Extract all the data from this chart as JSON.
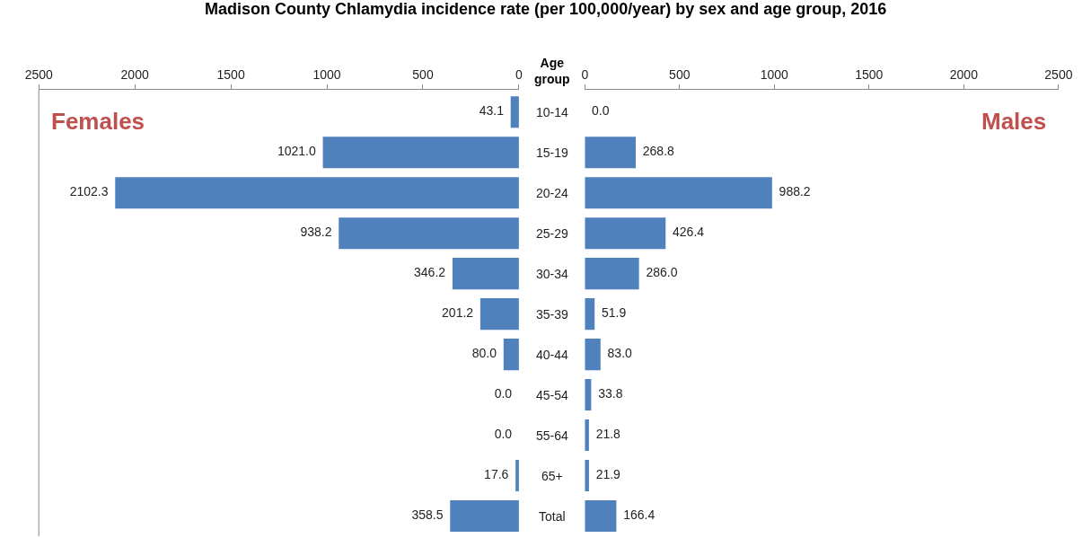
{
  "chart_data": [
    {
      "type": "bar",
      "orientation": "horizontal",
      "title": "Madison County Chlamydia incidence rate (per 100,000/year) by sex and age group, 2016",
      "categories": [
        "10-14",
        "15-19",
        "20-24",
        "25-29",
        "30-34",
        "35-39",
        "40-44",
        "45-54",
        "55-64",
        "65+",
        "Total"
      ],
      "series": [
        {
          "name": "Females",
          "color": "#4f81bd",
          "values": [
            43.1,
            1021.0,
            2102.3,
            938.2,
            346.2,
            201.2,
            80.0,
            0.0,
            0.0,
            17.6,
            358.5
          ],
          "value_labels": [
            "43.1",
            "1021.0",
            "2102.3",
            "938.2",
            "346.2",
            "201.2",
            "80.0",
            "0.0",
            "0.0",
            "17.6",
            "358.5"
          ]
        }
      ],
      "xlim": [
        2500,
        0
      ],
      "xticks": [
        2500,
        2000,
        1500,
        1000,
        500,
        0
      ],
      "tick_labels": "x",
      "grid": false,
      "legend": false
    },
    {
      "type": "bar",
      "orientation": "horizontal",
      "ylabel": "Age group",
      "categories": [
        "10-14",
        "15-19",
        "20-24",
        "25-29",
        "30-34",
        "35-39",
        "40-44",
        "45-54",
        "55-64",
        "65+",
        "Total"
      ],
      "series": [
        {
          "name": "Males",
          "color": "#4f81bd",
          "values": [
            0.0,
            268.8,
            988.2,
            426.4,
            286.0,
            51.9,
            83.0,
            33.8,
            21.8,
            21.9,
            166.4
          ],
          "value_labels": [
            "0.0",
            "268.8",
            "988.2",
            "426.4",
            "286.0",
            "51.9",
            "83.0",
            "33.8",
            "21.8",
            "21.9",
            "166.4"
          ]
        }
      ],
      "xlim": [
        0,
        2500
      ],
      "xticks": [
        0,
        500,
        1000,
        1500,
        2000,
        2500
      ],
      "grid": false,
      "legend": false
    }
  ]
}
